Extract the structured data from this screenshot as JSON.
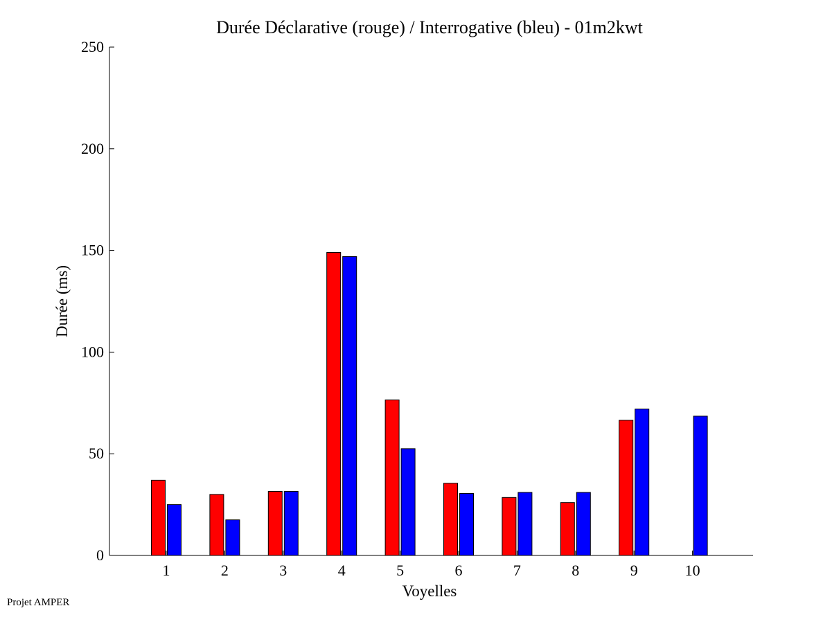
{
  "chart_data": {
    "type": "bar",
    "title": "Durée Déclarative (rouge) / Interrogative (bleu) - 01m2kwt",
    "xlabel": "Voyelles",
    "ylabel": "Durée (ms)",
    "ylim": [
      0,
      250
    ],
    "yticks": [
      0,
      50,
      100,
      150,
      200,
      250
    ],
    "categories": [
      "1",
      "2",
      "3",
      "4",
      "5",
      "6",
      "7",
      "8",
      "9",
      "10"
    ],
    "series": [
      {
        "color": "#ff0000",
        "values": [
          37,
          30,
          31.5,
          149,
          76.5,
          35.5,
          28.5,
          26,
          66.5,
          null
        ]
      },
      {
        "color": "#0000ff",
        "values": [
          25,
          17.5,
          31.5,
          147,
          52.5,
          30.5,
          31,
          31,
          72,
          68.5
        ]
      }
    ],
    "grid": false,
    "legend": "none"
  },
  "footer": {
    "text": "Projet AMPER"
  }
}
